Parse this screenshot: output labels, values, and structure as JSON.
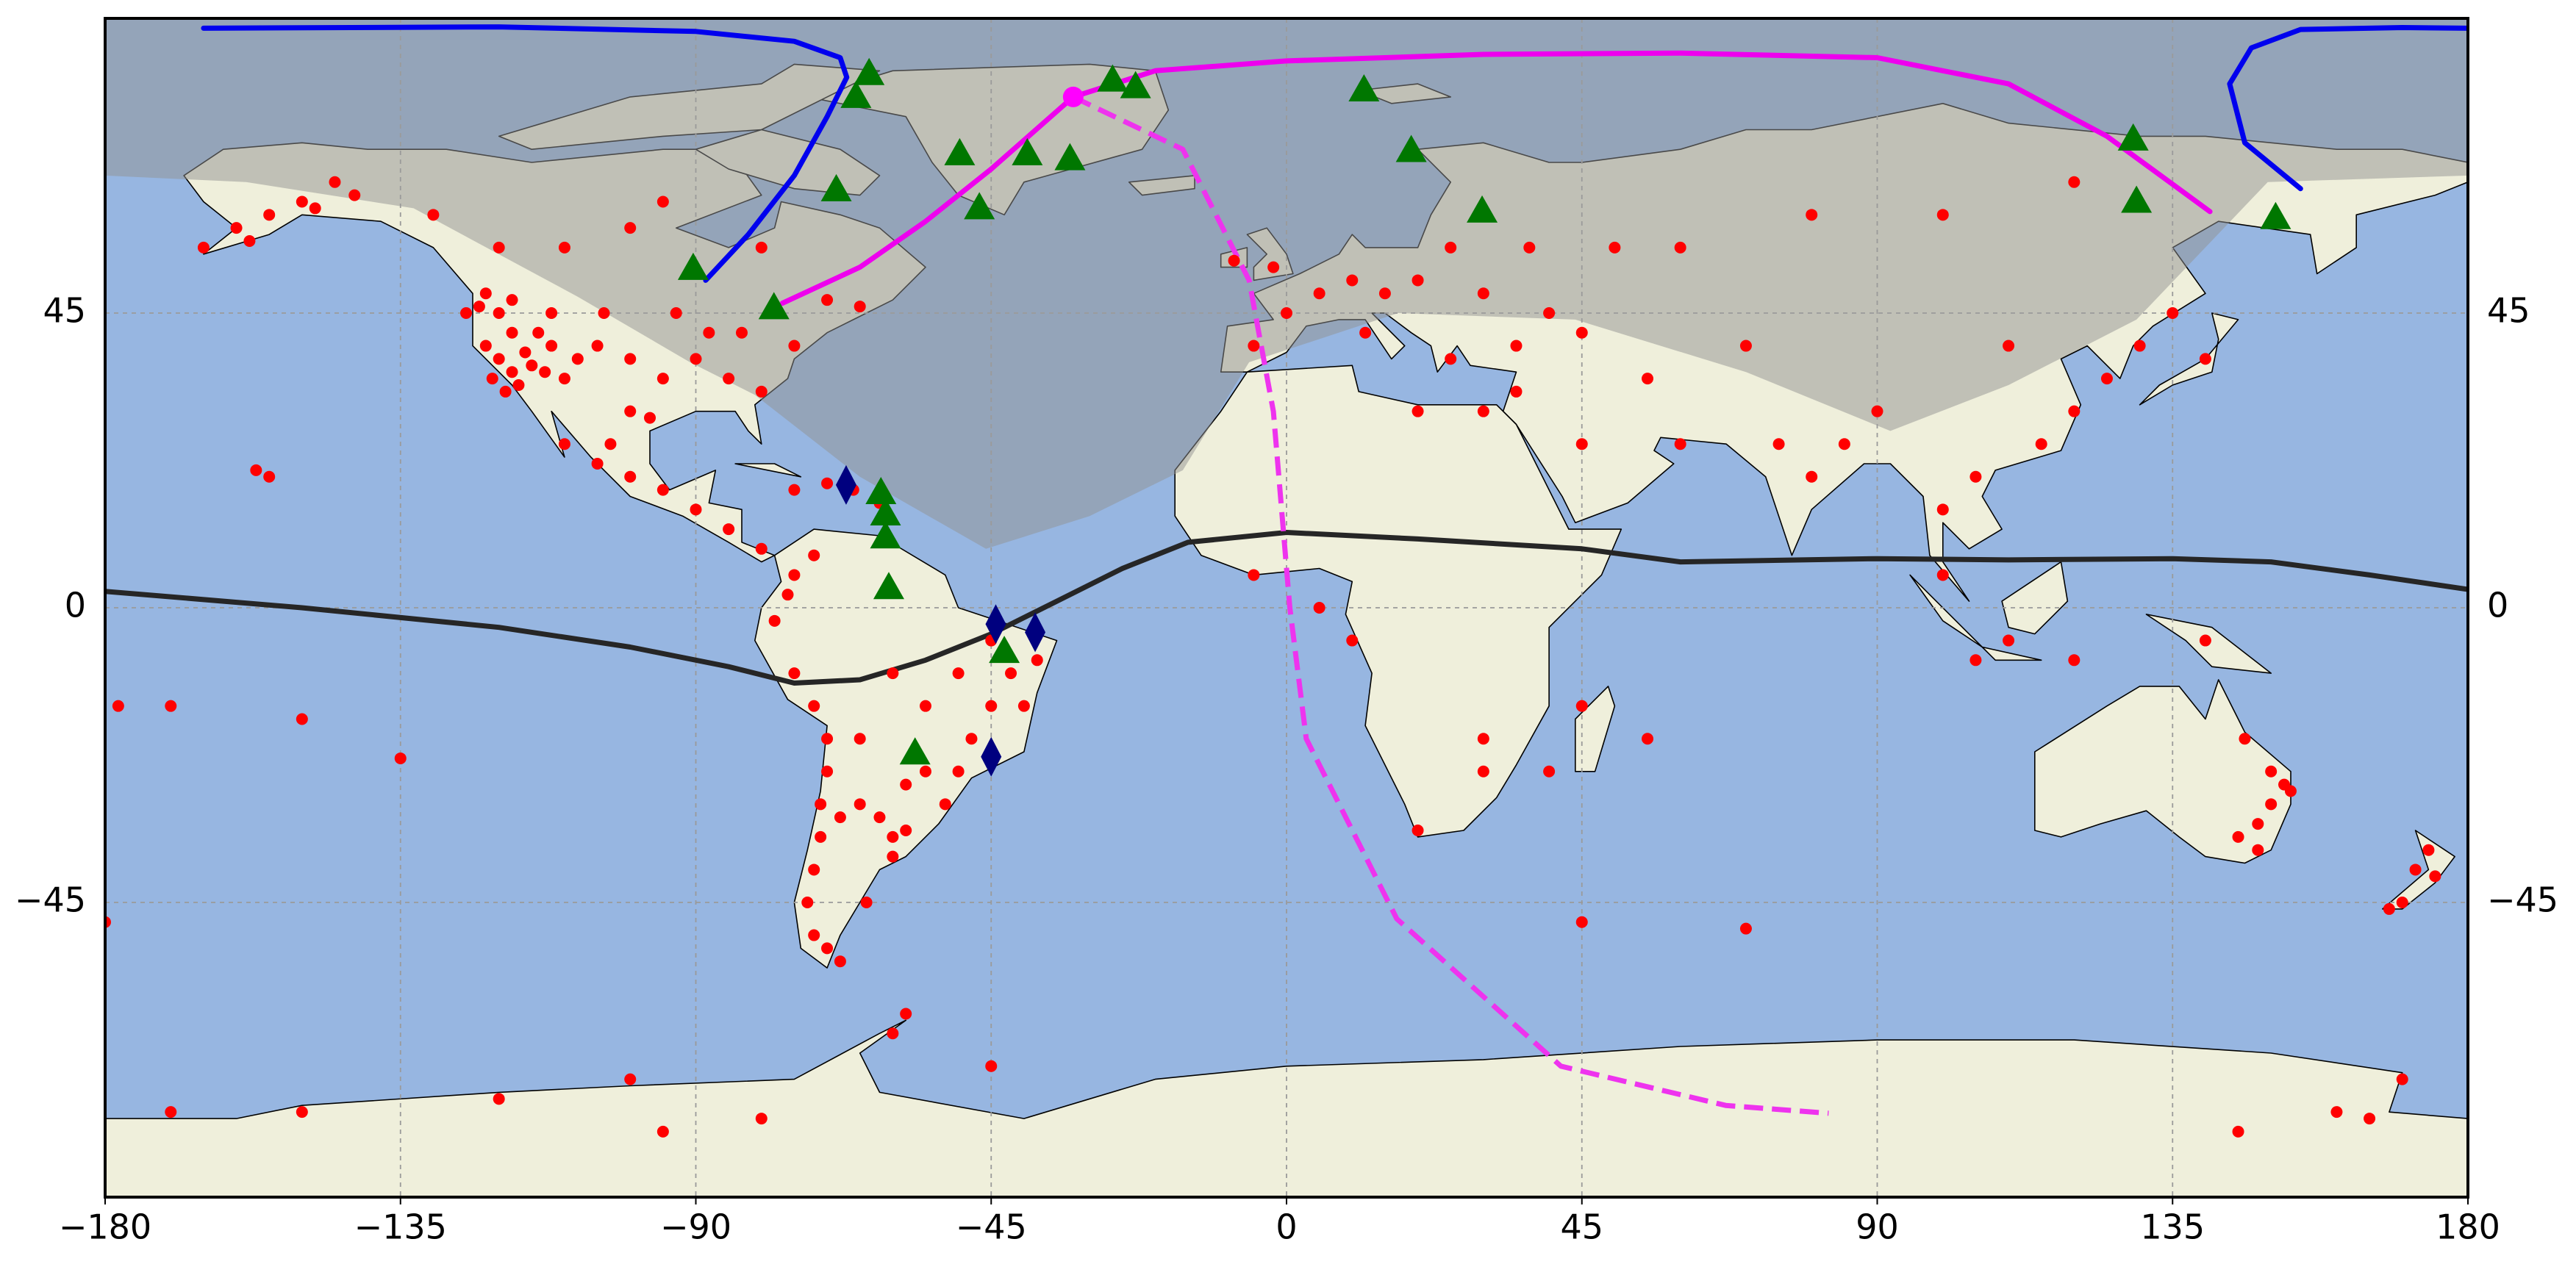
{
  "chart_data": {
    "type": "map",
    "xlim": [
      -180,
      180
    ],
    "ylim": [
      -90,
      90
    ],
    "xticks": [
      {
        "value": -180,
        "label": "−180"
      },
      {
        "value": -135,
        "label": "−135"
      },
      {
        "value": -90,
        "label": "−90"
      },
      {
        "value": -45,
        "label": "−45"
      },
      0,
      45,
      90,
      135,
      180
    ],
    "yticks": [
      {
        "value": -45,
        "label": "−45"
      },
      0,
      45
    ],
    "grid": true,
    "ocean_color": "#97b6e1",
    "land_color": "#efefdb",
    "shade": {
      "color": "#919191",
      "opacity": 0.5,
      "x": [
        -180,
        -158.5,
        -133,
        -108,
        -90.9,
        -81,
        -65,
        -45.8,
        -30,
        -15.8,
        -5.7,
        17,
        44,
        70,
        92,
        110,
        129.5,
        149.5,
        180
      ],
      "y": [
        66,
        65,
        61,
        47.5,
        37.5,
        32.5,
        20,
        9,
        14,
        21,
        37.5,
        45,
        44,
        36,
        27,
        34,
        44,
        65,
        66
      ]
    },
    "series": [
      {
        "marker": "line",
        "linestyle": "solid",
        "color": "#0000ee",
        "x": [
          -165,
          -120,
          -90,
          -75,
          -68,
          -67,
          -70,
          -75,
          -82,
          -88.5,
          null,
          154.5,
          146,
          143.7,
          147,
          154.5,
          170,
          180
        ],
        "y": [
          88.5,
          88.7,
          88,
          86.5,
          84,
          81,
          75,
          66,
          57,
          50,
          null,
          64,
          71,
          80,
          85.5,
          88.3,
          88.6,
          88.5
        ]
      },
      {
        "marker": "line",
        "linestyle": "solid",
        "color": "#262626",
        "x": [
          -180,
          -150,
          -120,
          -100,
          -85,
          -75,
          -65,
          -55,
          -45,
          -35,
          -25,
          -15,
          0,
          20,
          45,
          60,
          90,
          110,
          135,
          150,
          165,
          180
        ],
        "y": [
          2.5,
          0,
          -3,
          -6,
          -9,
          -11.5,
          -11,
          -8,
          -4,
          1,
          6,
          10,
          11.5,
          10.5,
          9,
          7,
          7.5,
          7.3,
          7.5,
          7,
          5,
          2.8
        ]
      },
      {
        "marker": "line",
        "linestyle": "solid",
        "color": "#ee00ee",
        "x": [
          -76.8,
          -65,
          -55,
          -45,
          -32.5,
          -20,
          0,
          30,
          60,
          90,
          110,
          125,
          140.7
        ],
        "y": [
          46.5,
          52,
          59,
          67,
          78,
          82,
          83.5,
          84.5,
          84.7,
          84,
          80,
          72,
          60.5
        ]
      },
      {
        "marker": "line",
        "linestyle": "dashed",
        "color": "#ee33ee",
        "x": [
          -32.5,
          -15.8,
          -5.7,
          -2,
          0.5,
          3,
          16.8,
          41.8,
          66.9,
          82.6
        ],
        "y": [
          78,
          70,
          50,
          30,
          0,
          -20,
          -47.5,
          -70,
          -76,
          -77.2
        ]
      },
      {
        "marker": "dot",
        "color": "#ff0000",
        "x": [
          -120,
          -118,
          -122,
          -115,
          -112,
          -110,
          -105,
          -100,
          -95,
          -90,
          -85,
          -80,
          -75,
          -120,
          -118,
          -116,
          -114,
          -121,
          -119,
          -117,
          -113,
          -108,
          -100,
          -97,
          -88,
          -83,
          -93,
          -104,
          -112,
          -123,
          -122,
          -118,
          -125,
          -150,
          -145,
          -155,
          -160,
          -148,
          -142,
          -165,
          -158,
          -110,
          -100,
          -120,
          -95,
          -80,
          -70,
          -65,
          -130,
          -105,
          -100,
          -95,
          -90,
          -85,
          -80,
          -110,
          -103,
          -75,
          -70,
          -66,
          -62,
          -75,
          -72,
          -76,
          -78,
          -75,
          -72,
          -70,
          -70,
          -71,
          -71,
          -72,
          -73,
          -72,
          -70,
          -68,
          -65,
          -62,
          -60,
          -58,
          -55,
          -50,
          -48,
          -45,
          -42,
          -38,
          -40,
          -45,
          -50,
          -55,
          -60,
          -65,
          -58,
          -52,
          -64,
          -60,
          -68,
          -5,
          0,
          5,
          10,
          15,
          20,
          25,
          30,
          -8,
          -2,
          12,
          25,
          35,
          40,
          45,
          30,
          37,
          50,
          60,
          80,
          100,
          120,
          90,
          75,
          80,
          85,
          100,
          105,
          115,
          120,
          125,
          130,
          140,
          135,
          110,
          70,
          55,
          60,
          100,
          110,
          120,
          140,
          105,
          -5,
          5,
          10,
          30,
          30,
          20,
          45,
          40,
          55,
          20,
          30,
          35,
          45,
          150,
          152,
          150,
          148,
          145,
          148,
          153,
          146,
          174,
          172,
          170,
          168,
          175,
          -155,
          -157,
          -178,
          -170,
          -150,
          -135,
          -180,
          45,
          70,
          -100,
          -80,
          -60,
          -58,
          -150,
          -170,
          160,
          165,
          170,
          145,
          -45,
          -120,
          -95
        ],
        "y": [
          38,
          36,
          40,
          37,
          40,
          35,
          40,
          38,
          35,
          38,
          35,
          33,
          40,
          45,
          42,
          39,
          42,
          35,
          33,
          34,
          36,
          38,
          30,
          29,
          42,
          42,
          45,
          45,
          45,
          46,
          48,
          47,
          45,
          62,
          65,
          60,
          58,
          61,
          63,
          55,
          56,
          55,
          58,
          55,
          62,
          55,
          47,
          46,
          60,
          22,
          20,
          18,
          15,
          12,
          9,
          25,
          25,
          18,
          19,
          18,
          16,
          5,
          8,
          2,
          -2,
          -10,
          -15,
          -20,
          -25,
          -30,
          -35,
          -40,
          -45,
          -50,
          -52,
          -54,
          -30,
          -32,
          -35,
          -34,
          -25,
          -25,
          -20,
          -15,
          -10,
          -8,
          -15,
          -5,
          -10,
          -15,
          -10,
          -20,
          -27,
          -30,
          -45,
          -38,
          -32,
          40,
          45,
          48,
          50,
          48,
          50,
          55,
          60,
          53,
          52,
          42,
          38,
          40,
          45,
          42,
          48,
          55,
          55,
          55,
          60,
          60,
          65,
          30,
          25,
          20,
          25,
          15,
          20,
          25,
          30,
          35,
          40,
          38,
          45,
          40,
          40,
          35,
          25,
          5,
          -5,
          -8,
          -5,
          -8,
          5,
          0,
          -5,
          -20,
          -25,
          -34,
          -15,
          -25,
          -20,
          30,
          30,
          33,
          25,
          -25,
          -27,
          -30,
          -33,
          -35,
          -37,
          -28,
          -20,
          -37,
          -40,
          -45,
          -46,
          -41,
          20,
          21,
          -15,
          -15,
          -17,
          -23,
          -48,
          -48,
          -49,
          -72,
          -78,
          -65,
          -62,
          -77,
          -77,
          -77,
          -78,
          -72,
          -80,
          -70,
          -75,
          -80
        ]
      },
      {
        "marker": "triangle",
        "color": "#007700",
        "x": [
          -63.6,
          -65.6,
          -26.5,
          -23,
          11.8,
          19,
          29.8,
          -49.8,
          -39.5,
          -33,
          -46.8,
          -68.6,
          -90.4,
          -78.1,
          129,
          129.5,
          150.7,
          -61.8,
          -61.1,
          -61.1,
          -60.6,
          -43,
          -56.6
        ],
        "y": [
          81.5,
          78,
          80.5,
          79.5,
          79,
          69.75,
          60.5,
          69.25,
          69.25,
          68.5,
          61,
          63.75,
          51.75,
          45.75,
          71.5,
          62,
          59.5,
          17.5,
          14.25,
          10.75,
          3,
          -6.75,
          -22.25
        ]
      },
      {
        "marker": "diamond",
        "color": "#00007f",
        "x": [
          -67.1,
          -44.3,
          -38.3,
          -45
        ],
        "y": [
          18.75,
          -2.5,
          -3.75,
          -22.75
        ]
      },
      {
        "marker": "dot-large",
        "color": "#ff00ff",
        "x": [
          -32.5
        ],
        "y": [
          78
        ]
      }
    ]
  }
}
